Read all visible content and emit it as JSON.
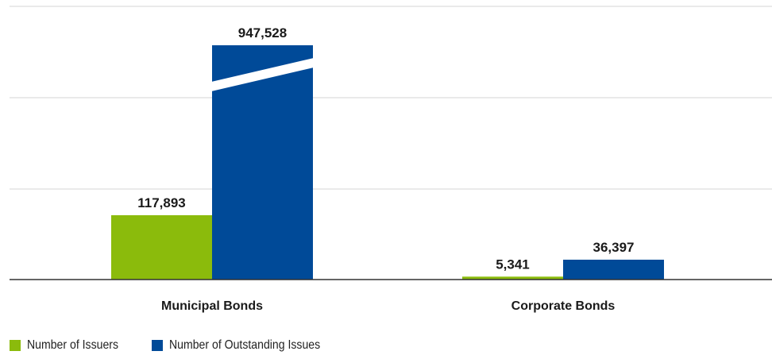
{
  "chart_data": {
    "type": "bar",
    "categories": [
      "Municipal Bonds",
      "Corporate Bonds"
    ],
    "series": [
      {
        "name": "Number of Issuers",
        "color": "#8BBB0C",
        "values": [
          117893,
          5341
        ],
        "labels": [
          "117,893",
          "5,341"
        ]
      },
      {
        "name": "Number of Outstanding Issues",
        "color": "#004A98",
        "values": [
          947528,
          36397
        ],
        "labels": [
          "947,528",
          "36,397"
        ]
      }
    ],
    "grid": true,
    "axis_break": {
      "series": 1,
      "category": 0
    },
    "legend_position": "bottom-left"
  }
}
